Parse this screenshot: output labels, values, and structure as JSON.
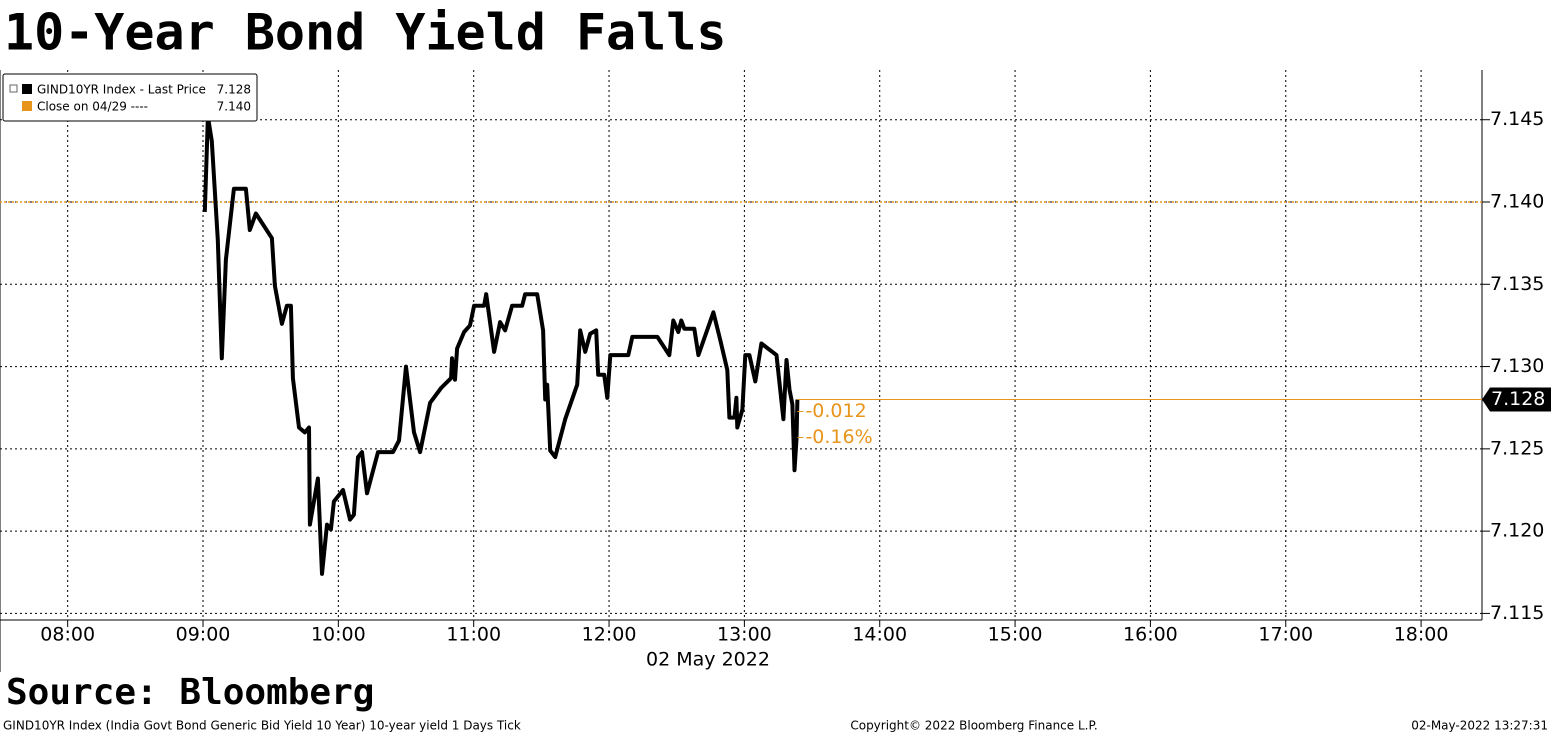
{
  "chart_data": {
    "type": "line",
    "title": "10-Year Bond Yield Falls",
    "xlabel": "02 May 2022",
    "grid": true,
    "legend": "top-left",
    "x": [
      9.013,
      9.036,
      9.065,
      9.109,
      9.139,
      9.169,
      9.228,
      9.317,
      9.346,
      9.391,
      9.509,
      9.531,
      9.583,
      9.62,
      9.649,
      9.664,
      9.709,
      9.753,
      9.783,
      9.79,
      9.849,
      9.879,
      9.916,
      9.945,
      9.967,
      10.034,
      10.086,
      10.115,
      10.145,
      10.175,
      10.212,
      10.293,
      10.404,
      10.448,
      10.5,
      10.559,
      10.604,
      10.678,
      10.759,
      10.833,
      10.84,
      10.862,
      10.877,
      10.929,
      10.973,
      11.003,
      11.077,
      11.092,
      11.151,
      11.195,
      11.232,
      11.284,
      11.358,
      11.38,
      11.469,
      11.513,
      11.528,
      11.543,
      11.565,
      11.602,
      11.676,
      11.765,
      11.787,
      11.824,
      11.861,
      11.905,
      11.92,
      11.964,
      11.987,
      12.009,
      12.142,
      12.172,
      12.357,
      12.445,
      12.475,
      12.512,
      12.534,
      12.556,
      12.63,
      12.66,
      12.771,
      12.822,
      12.874,
      12.889,
      12.926,
      12.941,
      12.948,
      12.985,
      13.007,
      13.037,
      13.081,
      13.126,
      13.237,
      13.288,
      13.311,
      13.333,
      13.355,
      13.37,
      13.385,
      13.392
    ],
    "series": [
      {
        "name": "GIND10YR Index - Last Price",
        "color": "#000000",
        "values": [
          7.1394,
          7.1452,
          7.1437,
          7.1377,
          7.1305,
          7.1365,
          7.1408,
          7.1408,
          7.1383,
          7.1393,
          7.1378,
          7.1349,
          7.1326,
          7.1337,
          7.1337,
          7.1293,
          7.1263,
          7.126,
          7.1263,
          7.1204,
          7.1232,
          7.1174,
          7.1204,
          7.1201,
          7.1218,
          7.1225,
          7.1207,
          7.121,
          7.1245,
          7.1248,
          7.1223,
          7.1248,
          7.1248,
          7.1255,
          7.13,
          7.126,
          7.1248,
          7.1278,
          7.1287,
          7.1293,
          7.1305,
          7.1292,
          7.1311,
          7.1321,
          7.1325,
          7.1337,
          7.1337,
          7.1344,
          7.1309,
          7.1327,
          7.1322,
          7.1337,
          7.1337,
          7.1344,
          7.1344,
          7.1322,
          7.128,
          7.1289,
          7.1249,
          7.1245,
          7.1268,
          7.1289,
          7.1322,
          7.1309,
          7.132,
          7.1322,
          7.1295,
          7.1295,
          7.1281,
          7.1307,
          7.1307,
          7.1318,
          7.1318,
          7.1307,
          7.1328,
          7.1321,
          7.1328,
          7.1323,
          7.1323,
          7.1307,
          7.1333,
          7.1316,
          7.1298,
          7.1269,
          7.1269,
          7.1281,
          7.1263,
          7.1274,
          7.1307,
          7.1307,
          7.1291,
          7.1314,
          7.1307,
          7.1268,
          7.1304,
          7.1286,
          7.1277,
          7.1237,
          7.1256,
          7.128
        ]
      }
    ],
    "reference_line": {
      "name": "Close on 04/29 ----",
      "color": "#e8951c",
      "value": 7.14,
      "value_label": "7.140"
    },
    "change": -0.012,
    "change_pct": {
      "value": -0.16,
      "label": "-0.16%"
    },
    "annotation_color": "#e8951c",
    "xlim": [
      7.5,
      18.45
    ],
    "ylim": [
      7.1146,
      7.1479
    ],
    "xticks": [
      {
        "value": 8,
        "label": "08:00"
      },
      {
        "value": 9,
        "label": "09:00"
      },
      {
        "value": 10,
        "label": "10:00"
      },
      {
        "value": 11,
        "label": "11:00"
      },
      {
        "value": 12,
        "label": "12:00"
      },
      {
        "value": 13,
        "label": "13:00"
      },
      {
        "value": 14,
        "label": "14:00"
      },
      {
        "value": 15,
        "label": "15:00"
      },
      {
        "value": 16,
        "label": "16:00"
      },
      {
        "value": 17,
        "label": "17:00"
      },
      {
        "value": 18,
        "label": "18:00"
      }
    ],
    "yticks": [
      7.115,
      {
        "value": 7.12,
        "label": "7.120"
      },
      7.125,
      {
        "value": 7.13,
        "label": "7.130"
      },
      7.135,
      {
        "value": 7.14,
        "label": "7.140"
      },
      7.145
    ],
    "source": "Source: Bloomberg",
    "footer": {
      "left": "GIND10YR Index (India Govt Bond Generic Bid Yield 10 Year) 10-year yield 1 Days  Tick",
      "center": "Copyright© 2022 Bloomberg Finance L.P.",
      "right": "02-May-2022 13:27:31"
    }
  }
}
